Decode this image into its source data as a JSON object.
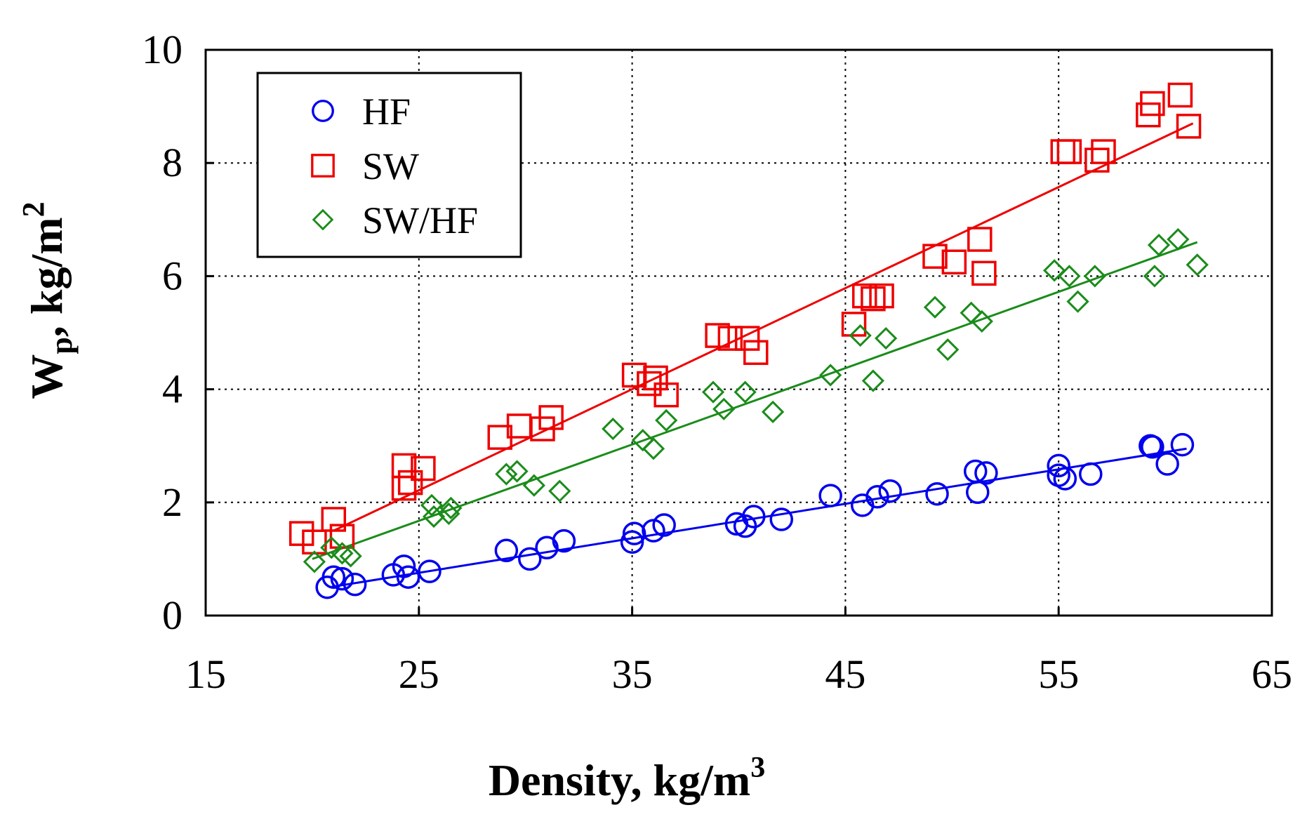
{
  "chart_data": {
    "type": "scatter",
    "title": "",
    "xlabel": "Density, kg/m",
    "xlabel_sup": "3",
    "ylabel_main": "W",
    "ylabel_sub": "p",
    "ylabel_rest": ", kg/m",
    "ylabel_sup": "2",
    "xlim": [
      15,
      65
    ],
    "ylim": [
      0,
      10
    ],
    "xticks": [
      15,
      25,
      35,
      45,
      55,
      65
    ],
    "yticks": [
      0,
      2,
      4,
      6,
      8,
      10
    ],
    "grid": "dotted",
    "legend_position": "top-left",
    "series": [
      {
        "name": "HF",
        "marker": "circle",
        "color": "#0000ee",
        "fit": [
          [
            20.8,
            0.5
          ],
          [
            61.0,
            2.95
          ]
        ],
        "points": [
          [
            20.7,
            0.5
          ],
          [
            21.0,
            0.68
          ],
          [
            21.4,
            0.65
          ],
          [
            22.0,
            0.55
          ],
          [
            23.8,
            0.72
          ],
          [
            24.3,
            0.87
          ],
          [
            24.5,
            0.68
          ],
          [
            25.5,
            0.78
          ],
          [
            29.1,
            1.15
          ],
          [
            30.2,
            1.0
          ],
          [
            31.0,
            1.2
          ],
          [
            31.8,
            1.32
          ],
          [
            35.1,
            1.45
          ],
          [
            35.0,
            1.3
          ],
          [
            36.0,
            1.5
          ],
          [
            36.5,
            1.6
          ],
          [
            39.9,
            1.62
          ],
          [
            40.3,
            1.58
          ],
          [
            40.7,
            1.75
          ],
          [
            42.0,
            1.7
          ],
          [
            44.3,
            2.12
          ],
          [
            45.8,
            1.95
          ],
          [
            46.5,
            2.1
          ],
          [
            47.1,
            2.2
          ],
          [
            49.3,
            2.15
          ],
          [
            51.1,
            2.55
          ],
          [
            51.2,
            2.18
          ],
          [
            51.6,
            2.52
          ],
          [
            55.0,
            2.65
          ],
          [
            55.0,
            2.48
          ],
          [
            55.3,
            2.42
          ],
          [
            56.5,
            2.5
          ],
          [
            59.3,
            3.0
          ],
          [
            59.4,
            2.98
          ],
          [
            60.1,
            2.68
          ],
          [
            60.8,
            3.02
          ]
        ]
      },
      {
        "name": "SW",
        "marker": "square",
        "color": "#ee0000",
        "fit": [
          [
            21.0,
            1.5
          ],
          [
            61.3,
            8.7
          ]
        ],
        "points": [
          [
            19.5,
            1.45
          ],
          [
            20.1,
            1.3
          ],
          [
            21.0,
            1.7
          ],
          [
            21.4,
            1.4
          ],
          [
            24.3,
            2.65
          ],
          [
            24.3,
            2.25
          ],
          [
            24.6,
            2.35
          ],
          [
            25.2,
            2.6
          ],
          [
            28.8,
            3.15
          ],
          [
            29.7,
            3.35
          ],
          [
            30.8,
            3.3
          ],
          [
            31.2,
            3.5
          ],
          [
            35.1,
            4.25
          ],
          [
            35.8,
            4.1
          ],
          [
            36.1,
            4.2
          ],
          [
            36.6,
            3.9
          ],
          [
            39.0,
            4.95
          ],
          [
            39.6,
            4.9
          ],
          [
            40.4,
            4.9
          ],
          [
            40.8,
            4.65
          ],
          [
            45.4,
            5.15
          ],
          [
            45.9,
            5.65
          ],
          [
            46.3,
            5.6
          ],
          [
            46.7,
            5.65
          ],
          [
            49.2,
            6.35
          ],
          [
            50.1,
            6.25
          ],
          [
            51.3,
            6.65
          ],
          [
            51.5,
            6.05
          ],
          [
            55.2,
            8.2
          ],
          [
            55.5,
            8.2
          ],
          [
            56.8,
            8.05
          ],
          [
            57.1,
            8.2
          ],
          [
            59.2,
            8.85
          ],
          [
            59.4,
            9.05
          ],
          [
            60.7,
            9.2
          ],
          [
            61.1,
            8.65
          ]
        ]
      },
      {
        "name": "SW/HF",
        "marker": "diamond",
        "color": "#1a8c1a",
        "fit": [
          [
            20.0,
            1.0
          ],
          [
            61.5,
            6.6
          ]
        ],
        "points": [
          [
            20.1,
            0.95
          ],
          [
            20.9,
            1.2
          ],
          [
            21.4,
            1.1
          ],
          [
            21.8,
            1.05
          ],
          [
            29.1,
            2.5
          ],
          [
            29.6,
            2.55
          ],
          [
            30.4,
            2.3
          ],
          [
            31.6,
            2.2
          ],
          [
            25.6,
            1.95
          ],
          [
            25.7,
            1.75
          ],
          [
            26.4,
            1.8
          ],
          [
            26.5,
            1.9
          ],
          [
            34.1,
            3.3
          ],
          [
            35.5,
            3.1
          ],
          [
            36.0,
            2.95
          ],
          [
            36.6,
            3.45
          ],
          [
            38.8,
            3.95
          ],
          [
            39.3,
            3.65
          ],
          [
            40.3,
            3.95
          ],
          [
            41.6,
            3.6
          ],
          [
            44.3,
            4.25
          ],
          [
            45.7,
            4.95
          ],
          [
            46.3,
            4.15
          ],
          [
            46.9,
            4.9
          ],
          [
            49.2,
            5.45
          ],
          [
            49.8,
            4.7
          ],
          [
            50.9,
            5.35
          ],
          [
            51.4,
            5.2
          ],
          [
            54.8,
            6.1
          ],
          [
            55.9,
            5.55
          ],
          [
            56.7,
            6.0
          ],
          [
            55.5,
            6.0
          ],
          [
            59.5,
            6.0
          ],
          [
            59.7,
            6.55
          ],
          [
            60.6,
            6.65
          ],
          [
            61.5,
            6.2
          ]
        ]
      }
    ]
  }
}
